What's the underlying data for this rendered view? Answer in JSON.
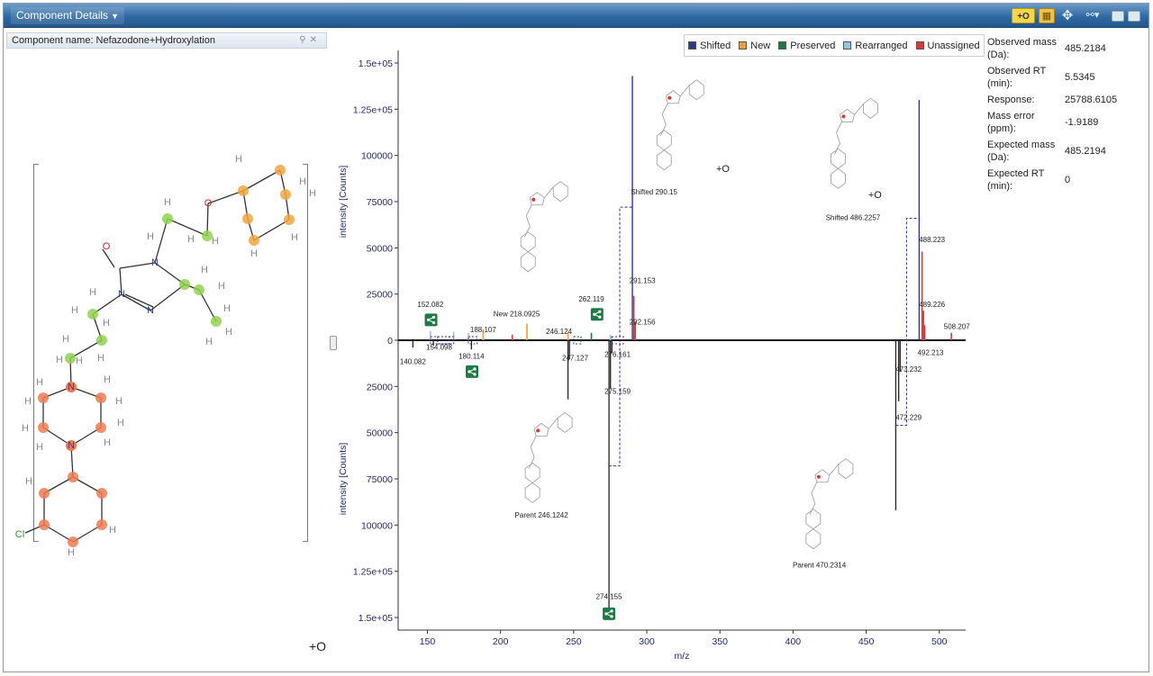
{
  "window": {
    "title": "Component Details",
    "toolbar_plus_label": "+O",
    "icons": [
      "grid-icon",
      "move-icon",
      "link-icon",
      "minimize-icon",
      "maximize-icon"
    ]
  },
  "component": {
    "name_label": "Component name: Nefazodone+Hydroxylation",
    "modification_label": "+O",
    "atom_labels": {
      "O": "O",
      "N": "N",
      "H": "H",
      "Cl": "Cl"
    }
  },
  "legend": [
    {
      "name": "Shifted",
      "color": "#2b3a8c"
    },
    {
      "name": "New",
      "color": "#f0a030"
    },
    {
      "name": "Preserved",
      "color": "#1a7a3a"
    },
    {
      "name": "Rearranged",
      "color": "#8fc8e6"
    },
    {
      "name": "Unassigned",
      "color": "#d63a3a"
    }
  ],
  "properties": [
    {
      "label": "Observed mass (Da):",
      "value": "485.2184"
    },
    {
      "label": "Observed RT (min):",
      "value": "5.5345"
    },
    {
      "label": "Response:",
      "value": "25788.6105"
    },
    {
      "label": "Mass error (ppm):",
      "value": "-1.9189"
    },
    {
      "label": "Expected mass (Da):",
      "value": "485.2194"
    },
    {
      "label": "Expected RT (min):",
      "value": "0"
    }
  ],
  "chart_data": {
    "type": "bar",
    "title": "",
    "xlabel": "m/z",
    "ylabel_top": "intensity [Counts]",
    "ylabel_bottom": "intensity [Counts]",
    "xlim": [
      130,
      518
    ],
    "ylim_top": [
      0,
      150000
    ],
    "ylim_bottom": [
      0,
      150000
    ],
    "x_ticks": [
      150,
      200,
      250,
      300,
      350,
      400,
      450,
      500
    ],
    "y_ticks": [
      {
        "value": 150000,
        "label": "1.5e+05"
      },
      {
        "value": 125000,
        "label": "1.25e+05"
      },
      {
        "value": 100000,
        "label": "100000"
      },
      {
        "value": 75000,
        "label": "75000"
      },
      {
        "value": 50000,
        "label": "50000"
      },
      {
        "value": 25000,
        "label": "25000"
      },
      {
        "value": 0,
        "label": "0"
      }
    ],
    "top_series": [
      {
        "name": "Shifted",
        "peaks": [
          {
            "x": 290.15,
            "y": 143000
          },
          {
            "x": 486.2257,
            "y": 130000
          }
        ]
      },
      {
        "name": "New",
        "peaks": [
          {
            "x": 188.107,
            "y": 6000
          },
          {
            "x": 218.0925,
            "y": 9000
          },
          {
            "x": 246.124,
            "y": 4500
          }
        ]
      },
      {
        "name": "Preserved",
        "peaks": [
          {
            "x": 262.119,
            "y": 4000
          }
        ]
      },
      {
        "name": "Rearranged",
        "peaks": [
          {
            "x": 152.082,
            "y": 5000
          },
          {
            "x": 168.0,
            "y": 4500
          },
          {
            "x": 178.0,
            "y": 4000
          },
          {
            "x": 275.0,
            "y": 3000
          }
        ]
      },
      {
        "name": "Unassigned",
        "peaks": [
          {
            "x": 208.0,
            "y": 3000
          },
          {
            "x": 291.153,
            "y": 24000
          },
          {
            "x": 292.156,
            "y": 10000
          },
          {
            "x": 488.223,
            "y": 48000
          },
          {
            "x": 489.226,
            "y": 16000
          },
          {
            "x": 490.0,
            "y": 8000
          },
          {
            "x": 508.207,
            "y": 4000
          }
        ]
      }
    ],
    "bottom_peaks": [
      {
        "x": 140.082,
        "y": 4000
      },
      {
        "x": 154.098,
        "y": 3000
      },
      {
        "x": 180.114,
        "y": 5000
      },
      {
        "x": 246.124,
        "y": 32000
      },
      {
        "x": 247.127,
        "y": 10000
      },
      {
        "x": 274.155,
        "y": 148000
      },
      {
        "x": 275.159,
        "y": 26000
      },
      {
        "x": 276.161,
        "y": 7000
      },
      {
        "x": 470.2314,
        "y": 92000
      },
      {
        "x": 472.229,
        "y": 33000
      },
      {
        "x": 473.232,
        "y": 17000
      }
    ],
    "shift_links": [
      {
        "x_parent": 274.155,
        "x_shifted": 290.15,
        "y_parent": 68000,
        "y_shifted": 72000
      },
      {
        "x_parent": 470.2314,
        "x_shifted": 486.2257,
        "y_parent": 46000,
        "y_shifted": 66000
      }
    ],
    "annotations": [
      {
        "text": "152.082",
        "x": 152.082,
        "y": 18000,
        "panel": "top"
      },
      {
        "text": "New 218.0925",
        "x": 211,
        "y": 13000,
        "panel": "top"
      },
      {
        "text": "188.107",
        "x": 188.107,
        "y": 4500,
        "panel": "top"
      },
      {
        "text": "246.124",
        "x": 240,
        "y": 3500,
        "panel": "top"
      },
      {
        "text": "262.119",
        "x": 262.119,
        "y": 21000,
        "panel": "top"
      },
      {
        "text": "291.153",
        "x": 297,
        "y": 31000,
        "panel": "top"
      },
      {
        "text": "292.156",
        "x": 297,
        "y": 8500,
        "panel": "top"
      },
      {
        "text": "488.223",
        "x": 495,
        "y": 53000,
        "panel": "top"
      },
      {
        "text": "489.226",
        "x": 495,
        "y": 18000,
        "panel": "top"
      },
      {
        "text": "508.207",
        "x": 512,
        "y": 6000,
        "panel": "top"
      },
      {
        "text": "Shifted 290.15",
        "x": 305,
        "y": 79000,
        "panel": "top"
      },
      {
        "text": "Shifted 486.2257",
        "x": 441,
        "y": 65000,
        "panel": "top"
      },
      {
        "text": "+O",
        "x": 352,
        "y": 91000,
        "panel": "top"
      },
      {
        "text": "+O",
        "x": 456,
        "y": 77000,
        "panel": "top"
      },
      {
        "text": "140.082",
        "x": 140.082,
        "y": 13000,
        "panel": "bottom"
      },
      {
        "text": "154.098",
        "x": 158,
        "y": 5000,
        "panel": "bottom"
      },
      {
        "text": "180.114",
        "x": 180.114,
        "y": 10000,
        "panel": "bottom"
      },
      {
        "text": "247.127",
        "x": 251,
        "y": 11000,
        "panel": "bottom"
      },
      {
        "text": "276.161",
        "x": 280,
        "y": 9000,
        "panel": "bottom"
      },
      {
        "text": "275.159",
        "x": 280,
        "y": 29000,
        "panel": "bottom"
      },
      {
        "text": "492.213",
        "x": 494,
        "y": 8000,
        "panel": "bottom"
      },
      {
        "text": "473.232",
        "x": 479,
        "y": 17000,
        "panel": "bottom"
      },
      {
        "text": "472.229",
        "x": 479,
        "y": 43000,
        "panel": "bottom"
      },
      {
        "text": "Parent 246.1242",
        "x": 228,
        "y": 96000,
        "panel": "bottom"
      },
      {
        "text": "Parent 470.2314",
        "x": 418,
        "y": 123000,
        "panel": "bottom"
      },
      {
        "text": "274.155",
        "x": 274.155,
        "y": 140000,
        "panel": "bottom"
      }
    ],
    "share_badges": [
      {
        "x": 152.5,
        "y": 11000,
        "panel": "top"
      },
      {
        "x": 266,
        "y": 14000,
        "panel": "top"
      },
      {
        "x": 180.5,
        "y": 17000,
        "panel": "bottom"
      },
      {
        "x": 274.155,
        "y": 148000,
        "panel": "bottom"
      }
    ],
    "thumbnails": [
      {
        "name": "thumb-top-new",
        "x": 225,
        "y": 80000,
        "panel": "top"
      },
      {
        "name": "thumb-top-shifted-290",
        "x": 318,
        "y": 135000,
        "panel": "top"
      },
      {
        "name": "thumb-top-shifted-486",
        "x": 437,
        "y": 125000,
        "panel": "top"
      },
      {
        "name": "thumb-bottom-parent-246",
        "x": 228,
        "y": 45000,
        "panel": "bottom"
      },
      {
        "name": "thumb-bottom-parent-470",
        "x": 420,
        "y": 70000,
        "panel": "bottom"
      }
    ]
  }
}
